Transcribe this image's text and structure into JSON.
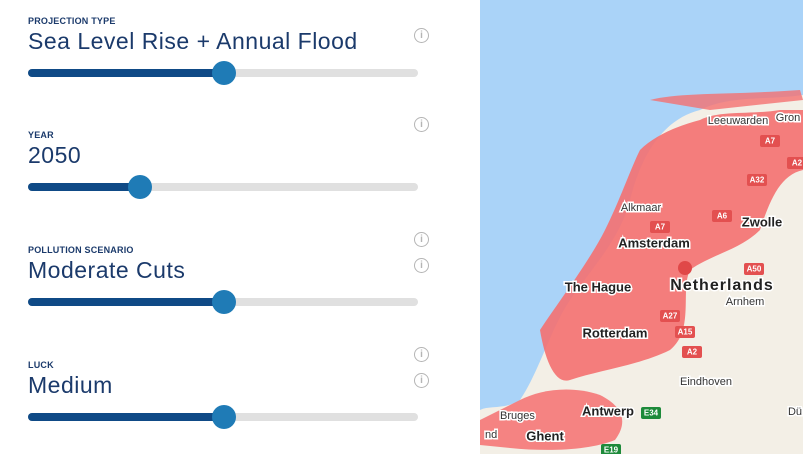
{
  "controls": [
    {
      "label": "PROJECTION TYPE",
      "value": "Sea Level Rise + Annual Flood"
    },
    {
      "label": "YEAR",
      "value": "2050"
    },
    {
      "label": "POLLUTION SCENARIO",
      "value": "Moderate Cuts"
    },
    {
      "label": "LUCK",
      "value": "Medium"
    }
  ],
  "map": {
    "places": [
      "Leeuwarden",
      "Gron",
      "Alkmaar",
      "Zwolle",
      "Amsterdam",
      "The Hague",
      "Netherlands",
      "Arnhem",
      "Rotterdam",
      "Eindhoven",
      "Bruges",
      "Antwerp",
      "Ghent",
      "Dü",
      "nd"
    ],
    "roads": [
      "A7",
      "A32",
      "A2",
      "A7",
      "A6",
      "A50",
      "A27",
      "A15",
      "A2",
      "E34",
      "E19"
    ]
  }
}
